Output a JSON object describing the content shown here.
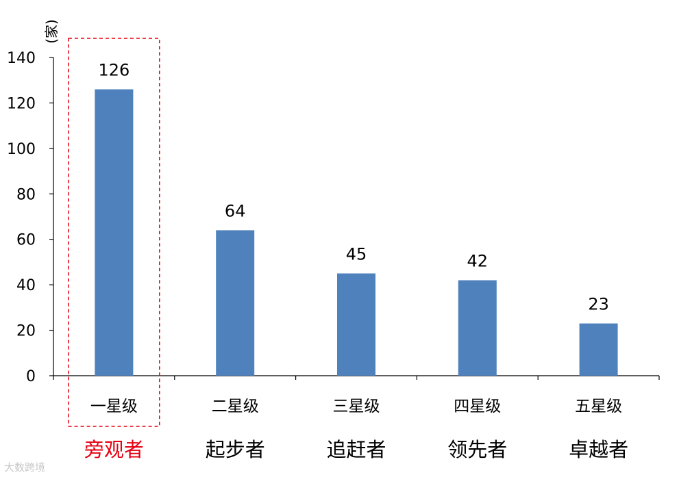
{
  "chart_data": {
    "type": "bar",
    "ylabel": "(家)",
    "categories": [
      "一星级",
      "二星级",
      "三星级",
      "四星级",
      "五星级"
    ],
    "groups": [
      "旁观者",
      "起步者",
      "追赶者",
      "领先者",
      "卓越者"
    ],
    "values": [
      126,
      64,
      45,
      42,
      23
    ],
    "ylim": [
      0,
      140
    ],
    "yticks": [
      0,
      20,
      40,
      60,
      80,
      100,
      120,
      140
    ],
    "bar_color": "#4f81bd",
    "highlight_index": 0,
    "highlight_color": "#e60012",
    "grid": false,
    "data_labels": true
  },
  "watermark": "大数跨境"
}
